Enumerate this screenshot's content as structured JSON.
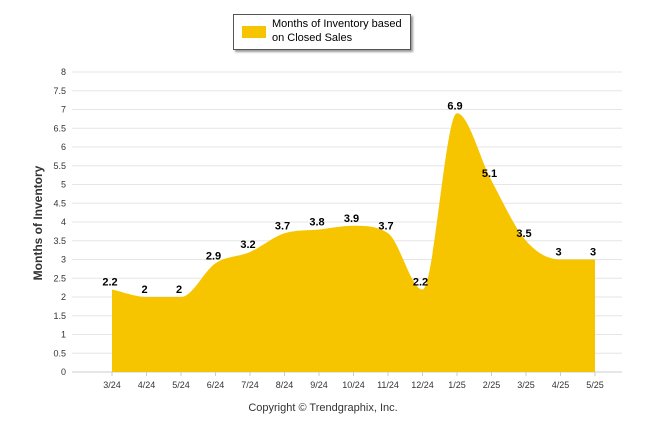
{
  "chart_data": {
    "type": "area",
    "title": "",
    "xlabel": "",
    "ylabel": "Months of Inventory",
    "categories": [
      "3/24",
      "4/24",
      "5/24",
      "6/24",
      "7/24",
      "8/24",
      "9/24",
      "10/24",
      "11/24",
      "12/24",
      "1/25",
      "2/25",
      "3/25",
      "4/25",
      "5/25"
    ],
    "series": [
      {
        "name": "Months of Inventory based on Closed Sales",
        "values": [
          2.2,
          2,
          2,
          2.9,
          3.2,
          3.7,
          3.8,
          3.9,
          3.7,
          2.2,
          6.9,
          5.1,
          3.5,
          3,
          3
        ],
        "color": "#F7C500"
      }
    ],
    "ylim": [
      0,
      8
    ],
    "yticks": [
      "0",
      "0.5",
      "1",
      "1.5",
      "2",
      "2.5",
      "3",
      "3.5",
      "4",
      "4.5",
      "5",
      "5.5",
      "6",
      "6.5",
      "7",
      "7.5",
      "8"
    ],
    "data_labels": [
      "2.2",
      "2",
      "2",
      "2.9",
      "3.2",
      "3.7",
      "3.8",
      "3.9",
      "3.7",
      "2.2",
      "6.9",
      "5.1",
      "3.5",
      "3",
      "3"
    ],
    "grid": true,
    "legend_position": "top-center",
    "smooth": true
  },
  "legend": {
    "label": "Months of Inventory based on Closed Sales"
  },
  "footer": {
    "copyright": "Copyright © Trendgraphix, Inc."
  },
  "colors": {
    "area_fill": "#F7C500",
    "grid": "#e6e6e6",
    "axis_text": "#333333"
  }
}
